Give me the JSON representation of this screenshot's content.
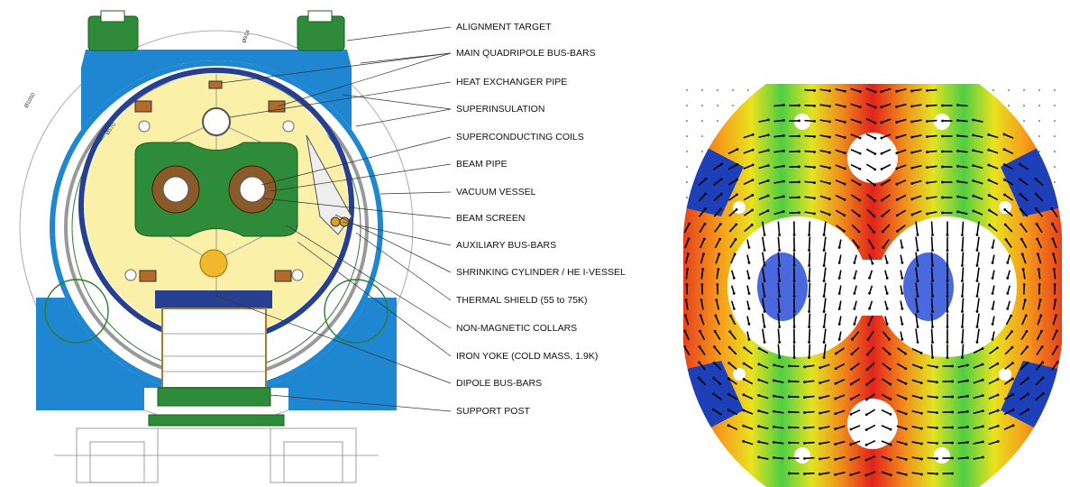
{
  "labels": [
    "ALIGNMENT TARGET",
    "MAIN QUADRIPOLE BUS-BARS",
    "HEAT EXCHANGER PIPE",
    "SUPERINSULATION",
    "SUPERCONDUCTING COILS",
    "BEAM PIPE",
    "VACUUM VESSEL",
    "BEAM SCREEN",
    "AUXILIARY BUS-BARS",
    "SHRINKING CYLINDER / HE I-VESSEL",
    "THERMAL SHIELD (55 to 75K)",
    "NON-MAGNETIC COLLARS",
    "IRON YOKE (COLD MASS, 1.9K)",
    "DIPOLE BUS-BARS",
    "SUPPORT POST"
  ],
  "dimensions": [
    "Ø914",
    "Ø570",
    "Ø1050"
  ]
}
